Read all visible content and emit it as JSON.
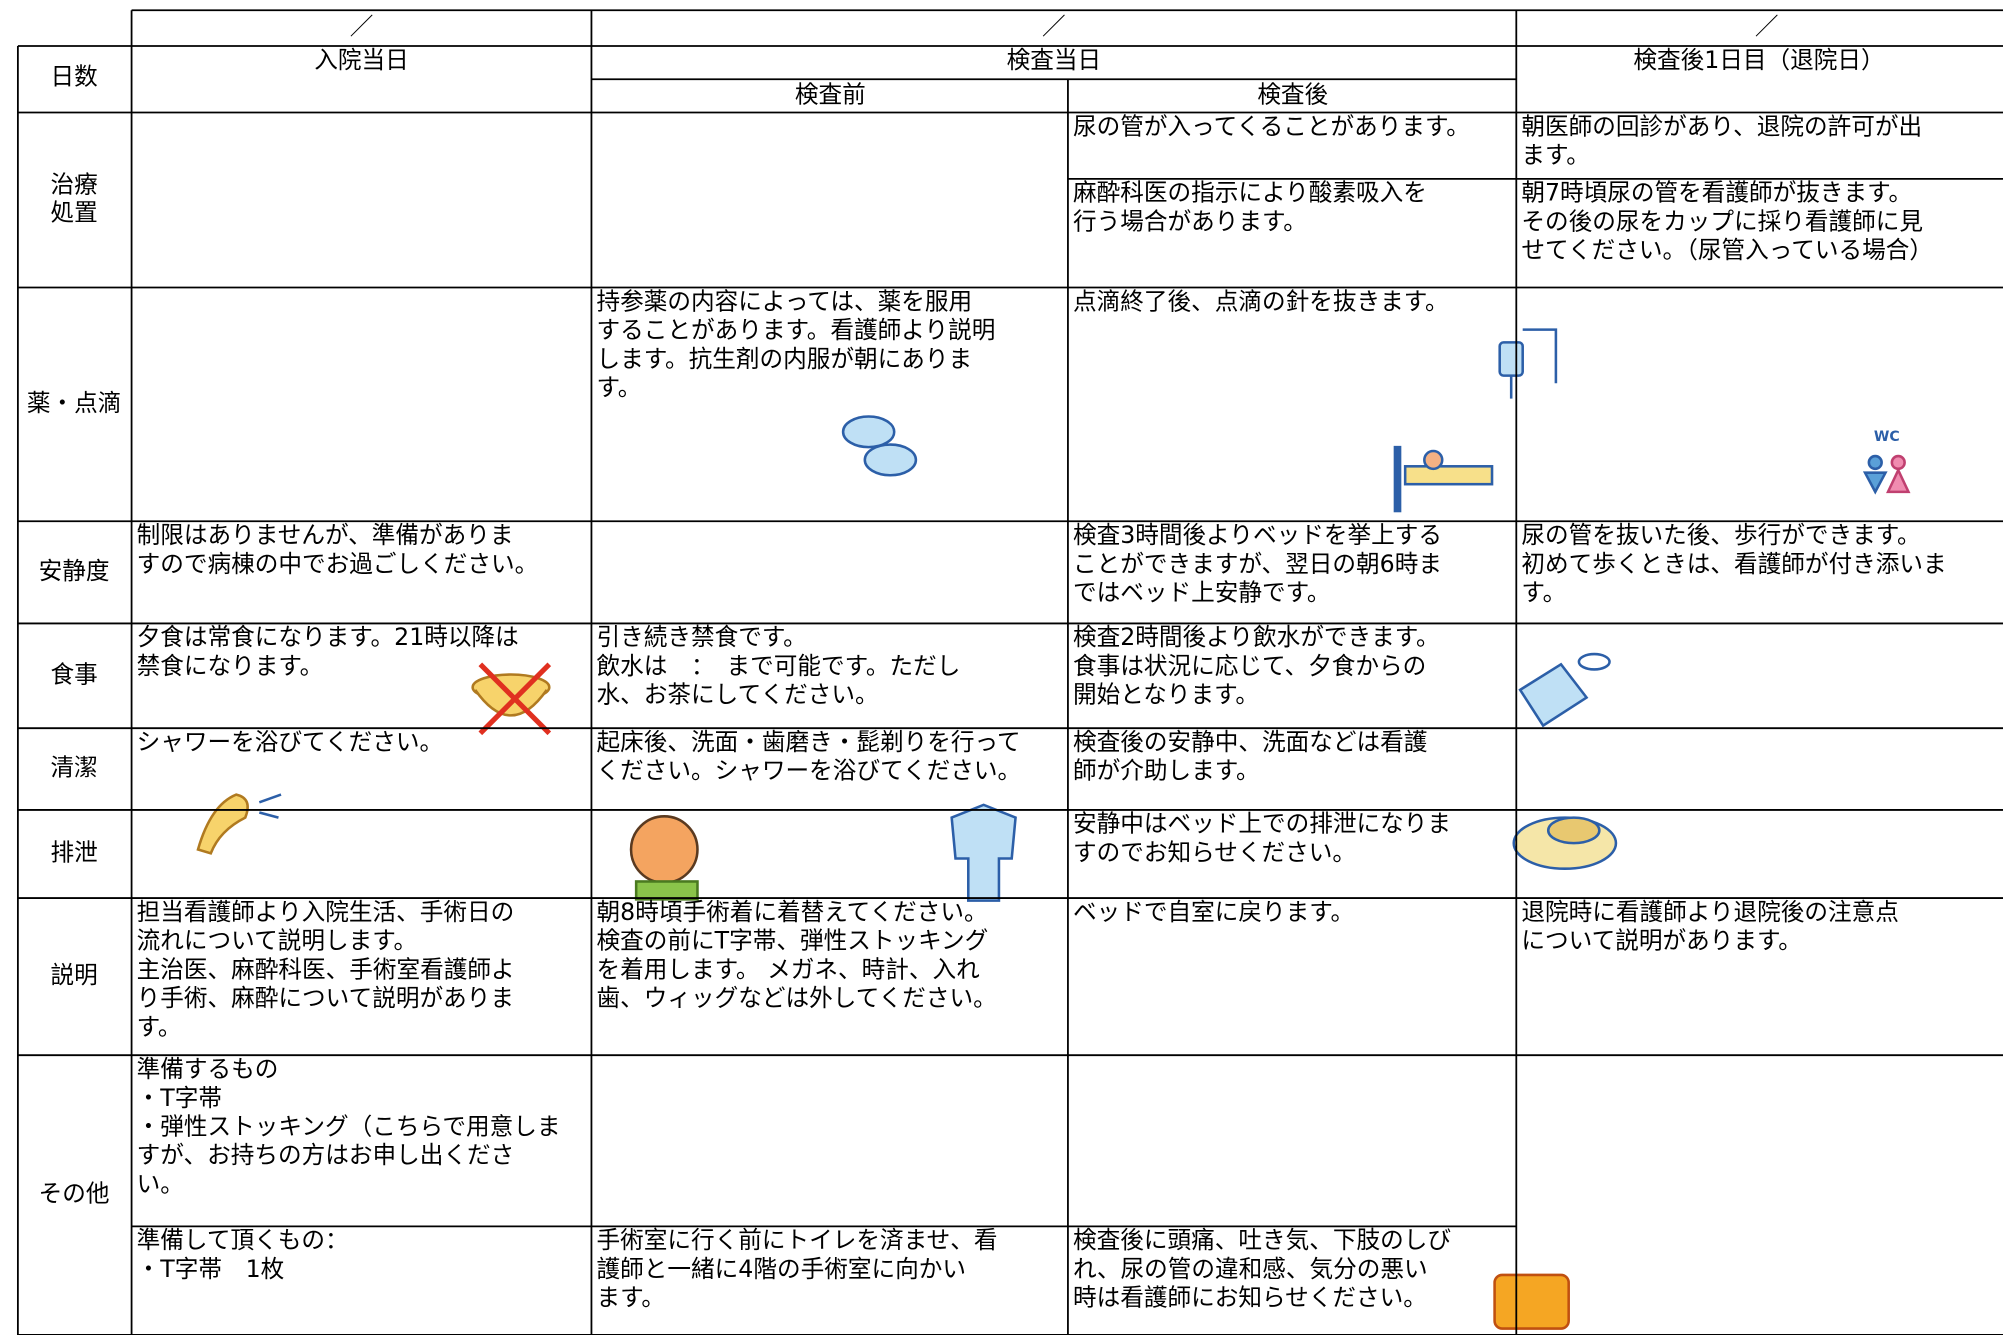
{
  "header": {
    "date_marks": [
      "／",
      "／",
      "／"
    ],
    "day_label": "日数",
    "columns": [
      "入院当日",
      "検査当日",
      "検査後1日目（退院日）"
    ],
    "subcolumns": [
      "検査前",
      "検査後"
    ]
  },
  "table": {
    "rows": [
      {
        "label": [
          "治療",
          "処置"
        ],
        "cells": [
          [
            null,
            null,
            [
              "尿の管が入ってくることがあります。"
            ],
            [
              "朝医師の回診があり、退院の許可が出",
              "ます。"
            ]
          ],
          [
            null,
            null,
            [
              "麻酔科医の指示により酸素吸入を",
              "行う場合があります。"
            ],
            [
              "朝7時頃尿の管を看護師が抜きます。",
              "その後の尿をカップに採り看護師に見",
              "せてください。（尿管入っている場合）"
            ]
          ]
        ]
      },
      {
        "label": [
          "薬・点滴"
        ],
        "cells": [
          [
            null,
            [
              "持参薬の内容によっては、薬を服用",
              "することがあります。看護師より説明",
              "します。抗生剤の内服が朝にありま",
              "す。"
            ],
            [
              "点滴終了後、点滴の針を抜きます。"
            ],
            null
          ]
        ]
      },
      {
        "label": [
          "安静度"
        ],
        "cells": [
          [
            [
              "制限はありませんが、準備がありま",
              "すので病棟の中でお過ごしください。"
            ],
            null,
            [
              "検査3時間後よりベッドを挙上する",
              "ことができますが、翌日の朝6時ま",
              "ではベッド上安静です。"
            ],
            [
              "尿の管を抜いた後、歩行ができます。",
              "初めて歩くときは、看護師が付き添いま",
              "す。"
            ]
          ]
        ]
      },
      {
        "label": [
          "食事"
        ],
        "cells": [
          [
            [
              "夕食は常食になります。21時以降は",
              "禁食になります。"
            ],
            [
              "引き続き禁食です。",
              "飲水は　：　まで可能です。ただし",
              "水、お茶にしてください。"
            ],
            [
              "検査2時間後より飲水ができます。",
              "食事は状況に応じて、夕食からの",
              "開始となります。"
            ],
            null
          ]
        ]
      },
      {
        "label": [
          "清潔"
        ],
        "cells": [
          [
            [
              "シャワーを浴びてください。"
            ],
            [
              "起床後、洗面・歯磨き・髭剃りを行って",
              "ください。シャワーを浴びてください。"
            ],
            [
              "検査後の安静中、洗面などは看護",
              "師が介助します。"
            ],
            null
          ]
        ]
      },
      {
        "label": [
          "排泄"
        ],
        "cells": [
          [
            null,
            null,
            [
              "安静中はベッド上での排泄になりま",
              "すのでお知らせください。"
            ],
            null
          ]
        ]
      },
      {
        "label": [
          "説明"
        ],
        "cells": [
          [
            [
              "担当看護師より入院生活、手術日の",
              "流れについて説明します。",
              "主治医、麻酔科医、手術室看護師よ",
              "り手術、麻酔について説明がありま",
              "す。"
            ],
            [
              "朝8時頃手術着に着替えてください。",
              "検査の前にT字帯、弾性ストッキング",
              "を着用します。 メガネ、時計、入れ",
              "歯、ウィッグなどは外してください。"
            ],
            [
              "ベッドで自室に戻ります。"
            ],
            [
              "退院時に看護師より退院後の注意点",
              "について説明があります。"
            ]
          ]
        ]
      },
      {
        "label": [
          "その他"
        ],
        "cells": [
          [
            [
              "準備するもの",
              "・T字帯",
              "・弾性ストッキング（こちらで用意しま",
              "すが、お持ちの方はお申し出くださ",
              "い。"
            ],
            null,
            null,
            null
          ],
          [
            [
              "準備して頂くもの：",
              "・T字帯　1枚"
            ],
            [
              "手術室に行く前にトイレを済ませ、看",
              "護師と一緒に4階の手術室に向かい",
              "ます。"
            ],
            [
              "検査後に頭痛、吐き気、下肢のしび",
              "れ、尿の管の違和感、気分の悪い",
              "時は看護師にお知らせください。"
            ],
            null
          ]
        ]
      }
    ]
  },
  "icons": {
    "wc": "WC"
  }
}
